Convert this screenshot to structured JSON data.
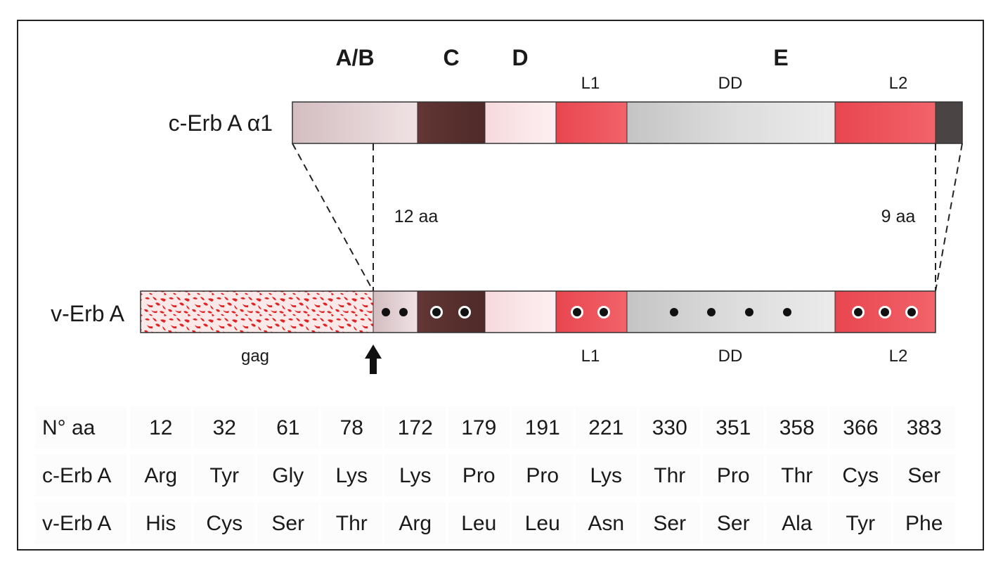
{
  "domains": {
    "ab": "A/B",
    "c": "C",
    "d": "D",
    "e": "E"
  },
  "c_erb": {
    "label": "c-Erb A α1",
    "sub_l1": "L1",
    "sub_dd": "DD",
    "sub_l2": "L2"
  },
  "deletions": {
    "n_term": "12 aa",
    "c_term": "9 aa"
  },
  "v_erb": {
    "label": "v-Erb A",
    "gag": "gag",
    "sub_l1": "L1",
    "sub_dd": "DD",
    "sub_l2": "L2",
    "dot_counts": {
      "ab": 2,
      "c": 2,
      "l1": 2,
      "dd": 4,
      "l2": 3
    }
  },
  "colors": {
    "ab": "#d9c3c6",
    "c": "#5c3330",
    "d": "#f8e3e5",
    "l1": "#ec5058",
    "dd": "#d2d2d2",
    "l2": "#ec4c54",
    "tail": "#4a4444",
    "gag": "#e02424"
  },
  "table": {
    "rows": [
      {
        "header": "N° aa",
        "cells": [
          "12",
          "32",
          "61",
          "78",
          "172",
          "179",
          "191",
          "221",
          "330",
          "351",
          "358",
          "366",
          "383"
        ]
      },
      {
        "header": "c-Erb A",
        "cells": [
          "Arg",
          "Tyr",
          "Gly",
          "Lys",
          "Lys",
          "Pro",
          "Pro",
          "Lys",
          "Thr",
          "Pro",
          "Thr",
          "Cys",
          "Ser"
        ]
      },
      {
        "header": "v-Erb A",
        "cells": [
          "His",
          "Cys",
          "Ser",
          "Thr",
          "Arg",
          "Leu",
          "Leu",
          "Asn",
          "Ser",
          "Ser",
          "Ala",
          "Tyr",
          "Phe"
        ]
      }
    ]
  }
}
